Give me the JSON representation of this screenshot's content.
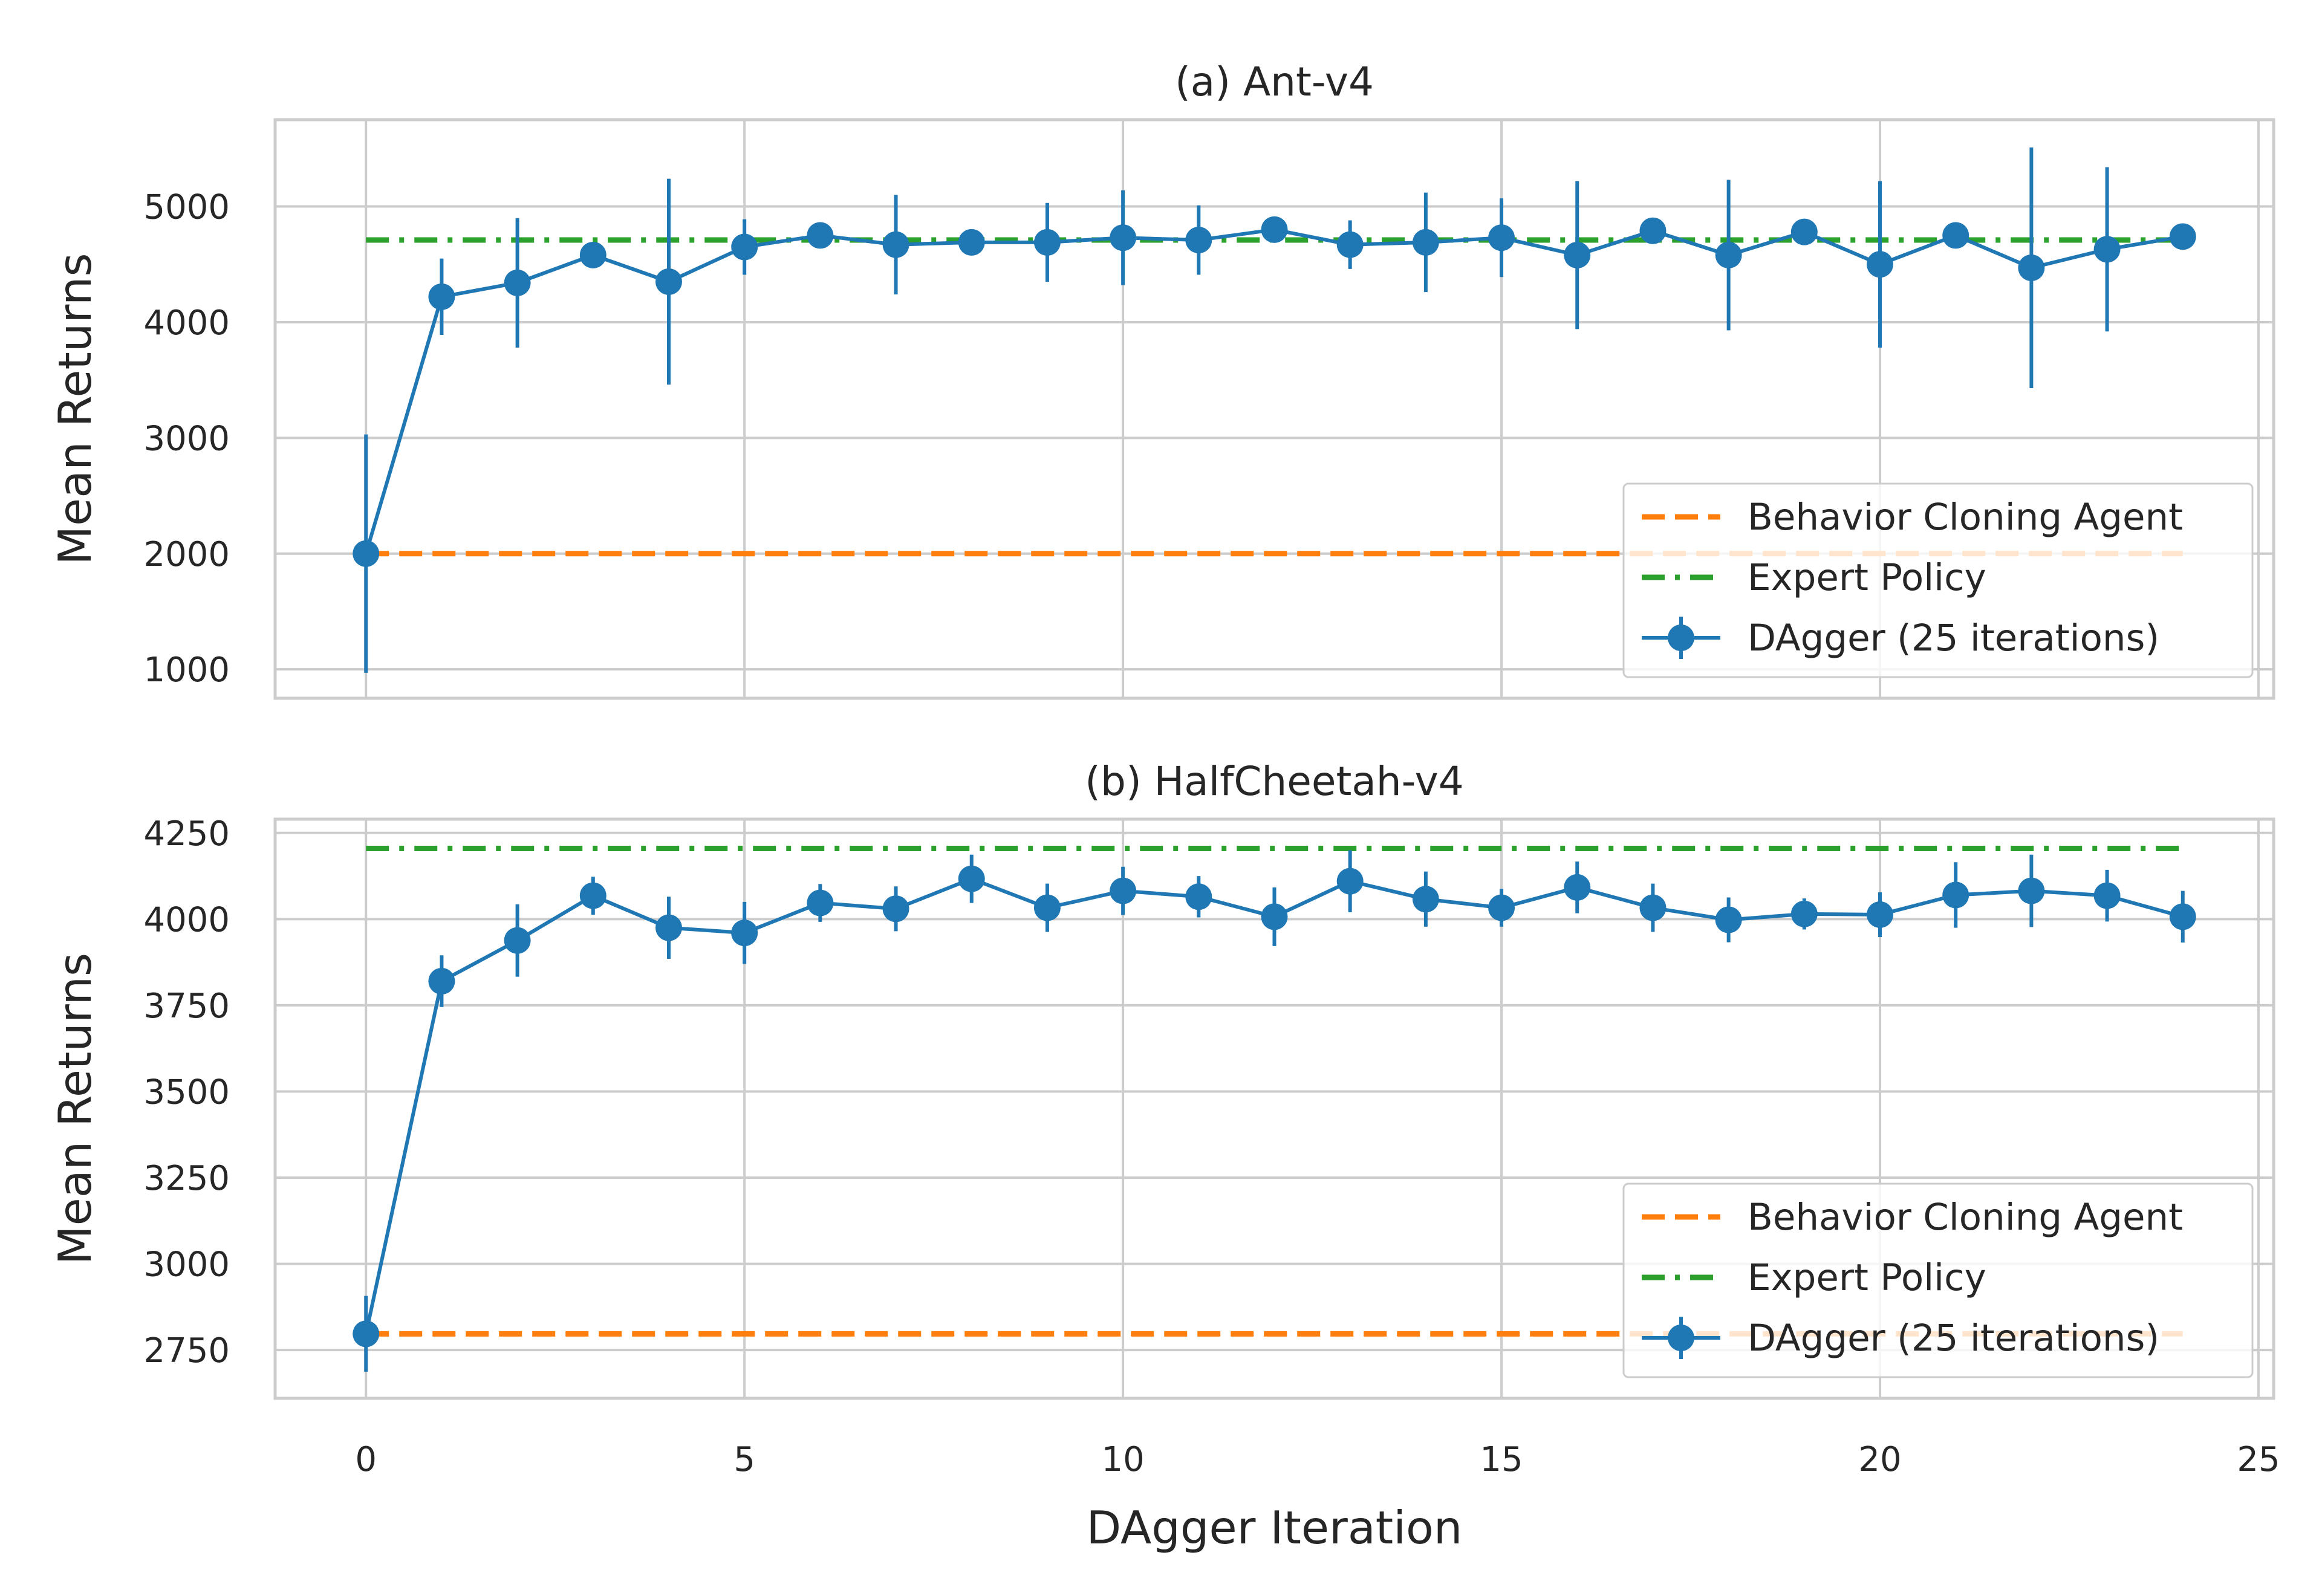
{
  "chart_data": [
    {
      "type": "line",
      "title": "(a) Ant-v4",
      "xlabel": "",
      "ylabel": "Mean Returns",
      "xlim": [
        -1.2,
        25.2
      ],
      "ylim": [
        750,
        5750
      ],
      "xticks": [
        0,
        5,
        10,
        15,
        20,
        25
      ],
      "yticks": [
        1000,
        2000,
        3000,
        4000,
        5000
      ],
      "grid": true,
      "legend_position": "lower-right",
      "series": [
        {
          "name": "Behavior Cloning Agent",
          "style": "dashed",
          "color": "#ff7f0e",
          "x": [
            0,
            24
          ],
          "y": [
            2000,
            2000
          ]
        },
        {
          "name": "Expert Policy",
          "style": "dashdot",
          "color": "#2ca02c",
          "x": [
            0,
            24
          ],
          "y": [
            4710,
            4710
          ]
        },
        {
          "name": "DAgger (25 iterations)",
          "style": "errorbar",
          "color": "#1f77b4",
          "x": [
            0,
            1,
            2,
            3,
            4,
            5,
            6,
            7,
            8,
            9,
            10,
            11,
            12,
            13,
            14,
            15,
            16,
            17,
            18,
            19,
            20,
            21,
            22,
            23,
            24
          ],
          "y": [
            2000,
            4220,
            4340,
            4580,
            4350,
            4650,
            4750,
            4670,
            4690,
            4690,
            4730,
            4710,
            4800,
            4670,
            4690,
            4730,
            4580,
            4790,
            4580,
            4780,
            4500,
            4750,
            4470,
            4630,
            4740
          ],
          "err": [
            1030,
            330,
            560,
            80,
            890,
            240,
            70,
            430,
            60,
            340,
            410,
            300,
            50,
            210,
            430,
            340,
            640,
            50,
            650,
            40,
            720,
            50,
            1040,
            710,
            50
          ]
        }
      ]
    },
    {
      "type": "line",
      "title": "(b) HalfCheetah-v4",
      "xlabel": "DAgger Iteration",
      "ylabel": "Mean Returns",
      "xlim": [
        -1.2,
        25.2
      ],
      "ylim": [
        2610,
        4290
      ],
      "xticks": [
        0,
        5,
        10,
        15,
        20,
        25
      ],
      "yticks": [
        2750,
        3000,
        3250,
        3500,
        3750,
        4000,
        4250
      ],
      "grid": true,
      "legend_position": "lower-right",
      "series": [
        {
          "name": "Behavior Cloning Agent",
          "style": "dashed",
          "color": "#ff7f0e",
          "x": [
            0,
            24
          ],
          "y": [
            2797,
            2797
          ]
        },
        {
          "name": "Expert Policy",
          "style": "dashdot",
          "color": "#2ca02c",
          "x": [
            0,
            24
          ],
          "y": [
            4205,
            4205
          ]
        },
        {
          "name": "DAgger (25 iterations)",
          "style": "errorbar",
          "color": "#1f77b4",
          "x": [
            0,
            1,
            2,
            3,
            4,
            5,
            6,
            7,
            8,
            9,
            10,
            11,
            12,
            13,
            14,
            15,
            16,
            17,
            18,
            19,
            20,
            21,
            22,
            23,
            24
          ],
          "y": [
            2797,
            3820,
            3938,
            4068,
            3975,
            3960,
            4047,
            4030,
            4117,
            4033,
            4082,
            4065,
            4007,
            4110,
            4058,
            4033,
            4092,
            4033,
            3998,
            4015,
            4013,
            4070,
            4082,
            4068,
            4007
          ],
          "err": [
            110,
            75,
            105,
            55,
            90,
            90,
            55,
            65,
            70,
            70,
            70,
            60,
            85,
            90,
            80,
            55,
            75,
            70,
            65,
            45,
            65,
            95,
            105,
            75,
            75
          ]
        }
      ]
    }
  ]
}
